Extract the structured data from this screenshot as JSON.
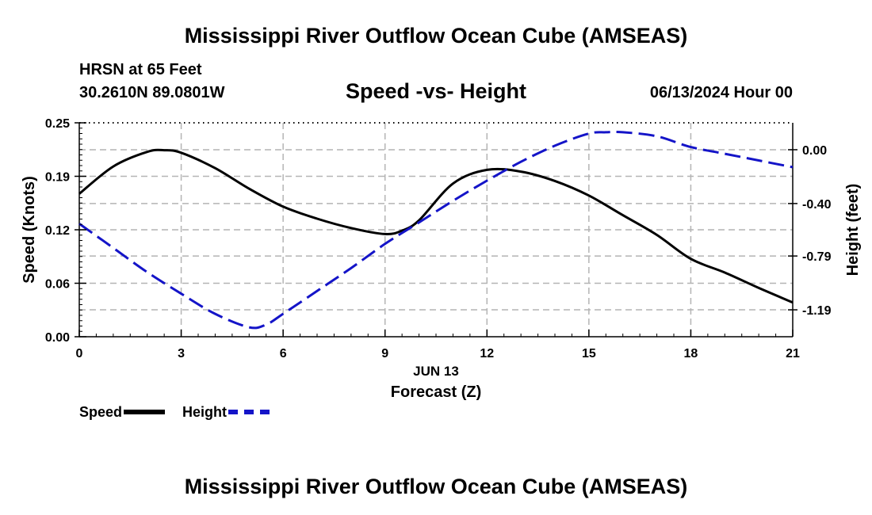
{
  "header": {
    "title": "Mississippi River Outflow Ocean Cube (AMSEAS)",
    "station": "HRSN at 65 Feet",
    "coords": "30.2610N  89.0801W",
    "subtitle": "Speed -vs- Height",
    "datetime": "06/13/2024 Hour 00"
  },
  "footer": {
    "title": "Mississippi River Outflow Ocean Cube (AMSEAS)"
  },
  "legend": {
    "speed_label": "Speed",
    "height_label": "Height"
  },
  "colors": {
    "speed": "#000000",
    "height": "#1414c8",
    "grid": "#b4b4b4"
  },
  "chart_data": {
    "type": "line",
    "title": "Speed -vs- Height",
    "xlabel": "Forecast (Z)",
    "xlabel_date": "JUN 13",
    "ylabel": "Speed (Knots)",
    "y2label": "Height (feet)",
    "xlim": [
      0,
      21
    ],
    "ylim": [
      0,
      0.25
    ],
    "y2lim": [
      -1.39,
      0.2
    ],
    "x_ticks": [
      0,
      3,
      6,
      9,
      12,
      15,
      18,
      21
    ],
    "x_tick_labels": [
      "0",
      "3",
      "6",
      "9",
      "12",
      "15",
      "18",
      "21"
    ],
    "y_ticks": [
      0,
      0.0625,
      0.125,
      0.1875,
      0.25
    ],
    "y_tick_labels": [
      "0.00",
      "0.06",
      "0.12",
      "0.19",
      "0.25"
    ],
    "y2_ticks": [
      0.0,
      -0.4,
      -0.79,
      -1.19
    ],
    "y2_tick_labels": [
      "0.00",
      "-0.40",
      "-0.79",
      "-1.19"
    ],
    "grid": true,
    "series": [
      {
        "name": "Speed",
        "axis": "left",
        "style": "solid",
        "x": [
          0,
          1,
          2,
          2.5,
          3,
          4,
          5,
          6,
          7,
          8,
          9,
          9.5,
          10,
          11,
          12,
          13,
          14,
          15,
          16,
          17,
          18,
          19,
          20,
          21
        ],
        "values": [
          0.167,
          0.199,
          0.216,
          0.218,
          0.215,
          0.197,
          0.173,
          0.152,
          0.138,
          0.127,
          0.12,
          0.124,
          0.136,
          0.179,
          0.195,
          0.193,
          0.182,
          0.165,
          0.142,
          0.119,
          0.091,
          0.075,
          0.057,
          0.04
        ]
      },
      {
        "name": "Height",
        "axis": "right",
        "style": "dashed",
        "x": [
          0,
          1,
          2,
          3,
          4,
          5,
          5.5,
          6,
          7,
          8,
          9,
          10,
          11,
          12,
          13,
          14,
          15,
          15.5,
          16,
          17,
          18,
          19,
          20,
          21
        ],
        "values": [
          -0.55,
          -0.73,
          -0.91,
          -1.07,
          -1.22,
          -1.32,
          -1.3,
          -1.22,
          -1.05,
          -0.88,
          -0.7,
          -0.54,
          -0.38,
          -0.23,
          -0.09,
          0.03,
          0.12,
          0.13,
          0.13,
          0.1,
          0.02,
          -0.03,
          -0.08,
          -0.13
        ]
      }
    ]
  }
}
